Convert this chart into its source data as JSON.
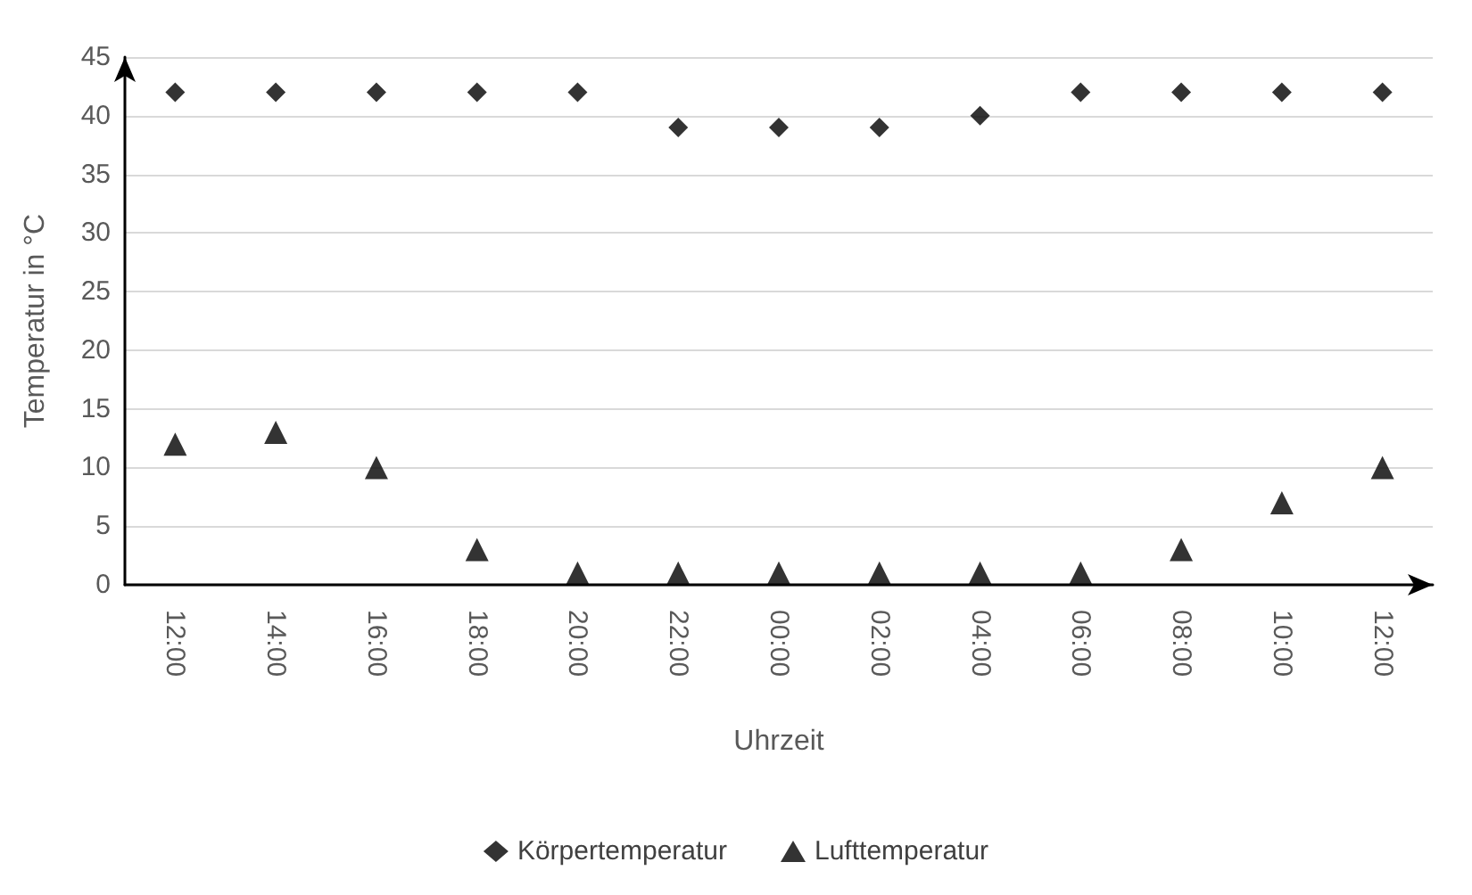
{
  "chart_data": {
    "type": "scatter",
    "xlabel": "Uhrzeit",
    "ylabel": "Temperatur in °C",
    "categories": [
      "12:00",
      "14:00",
      "16:00",
      "18:00",
      "20:00",
      "22:00",
      "00:00",
      "02:00",
      "04:00",
      "06:00",
      "08:00",
      "10:00",
      "12:00"
    ],
    "series": [
      {
        "name": "Körpertemperatur",
        "color": "#000000",
        "marker": "diamond",
        "values": [
          42,
          42,
          42,
          42,
          42,
          39,
          39,
          39,
          40,
          42,
          42,
          42,
          42
        ]
      },
      {
        "name": "Lufttemperatur",
        "color": "#000000",
        "marker": "triangle",
        "values": [
          12,
          13,
          10,
          3,
          1,
          1,
          1,
          1,
          1,
          1,
          3,
          7,
          10
        ]
      }
    ],
    "ylim": [
      0,
      45
    ],
    "yticks": [
      0,
      5,
      10,
      15,
      20,
      25,
      30,
      35,
      40,
      45
    ],
    "grid": "y",
    "legend": "bottom"
  }
}
